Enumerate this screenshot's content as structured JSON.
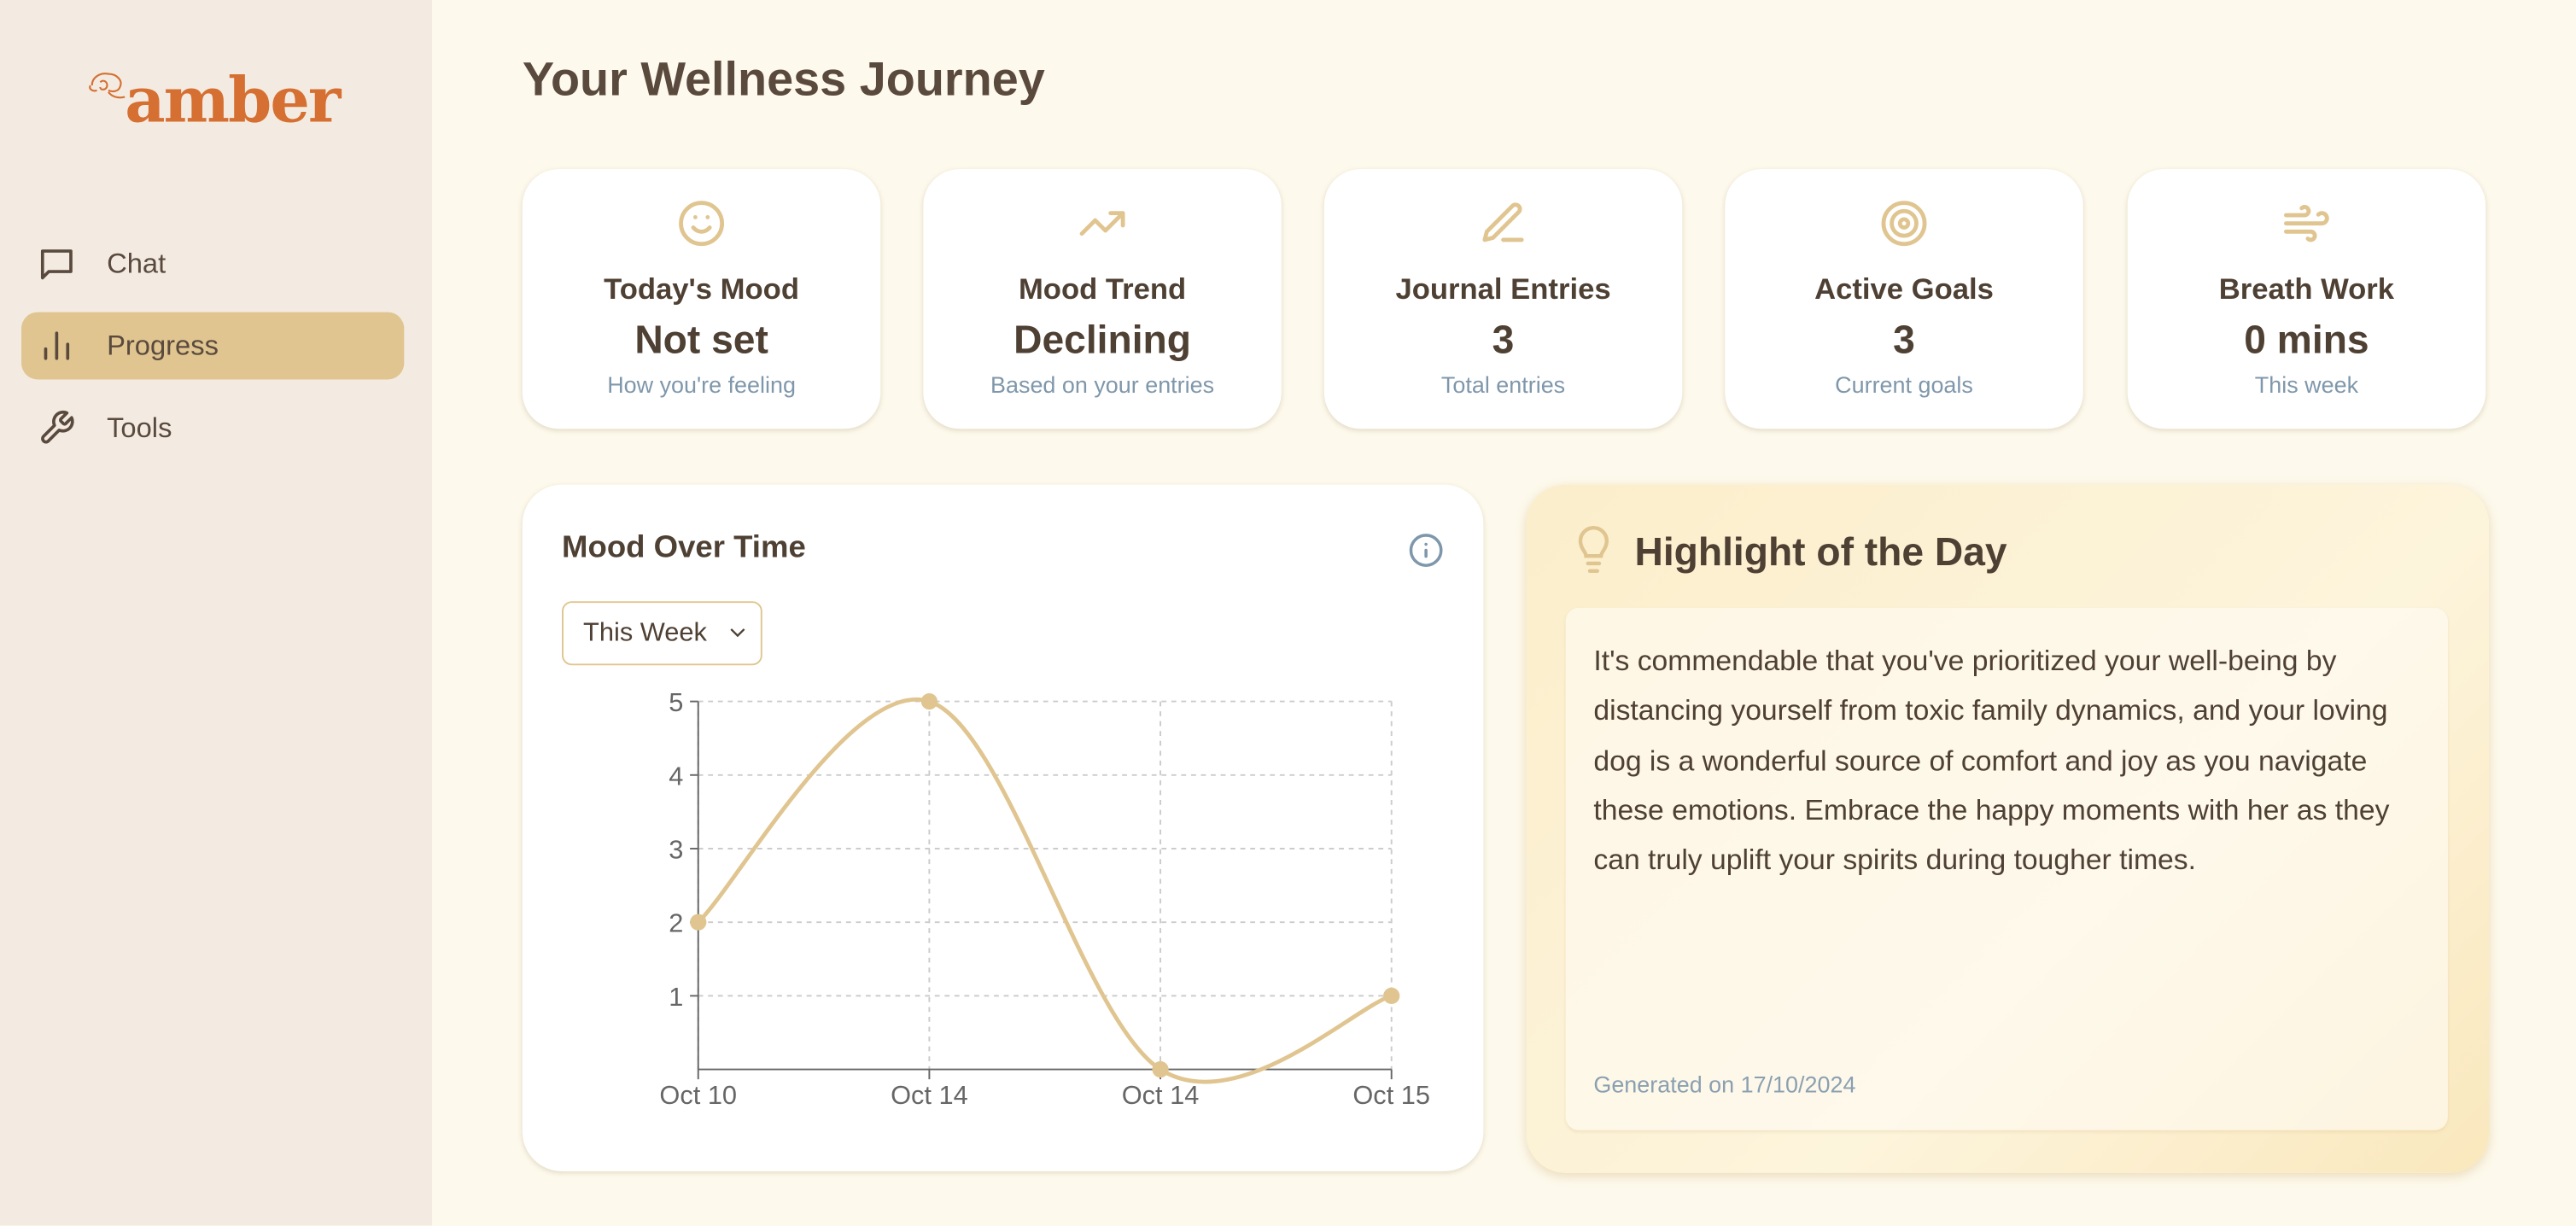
{
  "brand": {
    "name": "amber",
    "color": "#d66f32"
  },
  "sidebar": {
    "items": [
      {
        "label": "Chat",
        "icon": "message-square-icon",
        "active": false
      },
      {
        "label": "Progress",
        "icon": "bar-chart-icon",
        "active": true
      },
      {
        "label": "Tools",
        "icon": "wrench-icon",
        "active": false
      }
    ]
  },
  "page": {
    "title": "Your Wellness Journey"
  },
  "stats": [
    {
      "title": "Today's Mood",
      "value": "Not set",
      "sub": "How you're feeling",
      "icon": "smile-icon"
    },
    {
      "title": "Mood Trend",
      "value": "Declining",
      "sub": "Based on your entries",
      "icon": "trending-up-icon"
    },
    {
      "title": "Journal Entries",
      "value": "3",
      "sub": "Total entries",
      "icon": "pen-icon"
    },
    {
      "title": "Active Goals",
      "value": "3",
      "sub": "Current goals",
      "icon": "target-icon"
    },
    {
      "title": "Breath Work",
      "value": "0 mins",
      "sub": "This week",
      "icon": "wind-icon"
    }
  ],
  "mood_chart": {
    "title": "Mood Over Time",
    "range_select": "This Week"
  },
  "chart_data": {
    "type": "line",
    "categories": [
      "Oct 10",
      "Oct 14",
      "Oct 14",
      "Oct 15"
    ],
    "values": [
      2,
      5,
      0,
      1
    ],
    "ylim": [
      0,
      5
    ],
    "yticks": [
      1,
      2,
      3,
      4,
      5
    ],
    "grid": true,
    "color": "#e0c590"
  },
  "highlight": {
    "title": "Highlight of the Day",
    "text": "It's commendable that you've prioritized your well-being by distancing yourself from toxic family dynamics, and your loving dog is a wonderful source of comfort and joy as you navigate these emotions. Embrace the happy moments with her as they can truly uplift your spirits during tougher times.",
    "footer": "Generated on 17/10/2024"
  }
}
